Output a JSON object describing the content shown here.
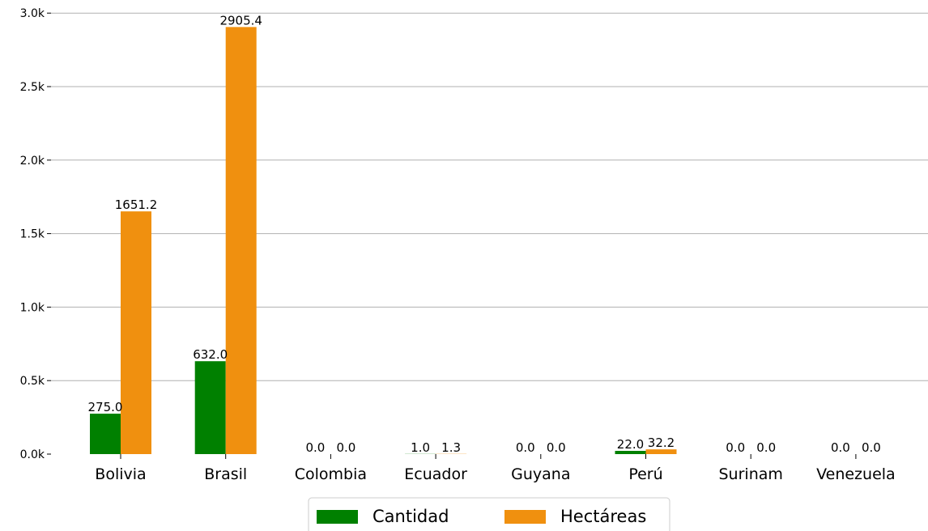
{
  "chart_data": {
    "type": "bar",
    "title": "",
    "xlabel": "",
    "ylabel": "",
    "categories": [
      "Bolivia",
      "Brasil",
      "Colombia",
      "Ecuador",
      "Guyana",
      "Perú",
      "Surinam",
      "Venezuela"
    ],
    "series": [
      {
        "name": "Cantidad",
        "color": "#008000",
        "values": [
          275.0,
          632.0,
          0.0,
          1.0,
          0.0,
          22.0,
          0.0,
          0.0
        ],
        "labels": [
          "275.0",
          "632.0",
          "0.0",
          "1.0",
          "0.0",
          "22.0",
          "0.0",
          "0.0"
        ]
      },
      {
        "name": "Hectáreas",
        "color": "#f0900f",
        "values": [
          1651.2,
          2905.4,
          0.0,
          1.3,
          0.0,
          32.2,
          0.0,
          0.0
        ],
        "labels": [
          "1651.2",
          "2905.4",
          "0.0",
          "1.3",
          "0.0",
          "32.2",
          "0.0",
          "0.0"
        ]
      }
    ],
    "yticks": [
      0,
      500,
      1000,
      1500,
      2000,
      2500,
      3000
    ],
    "ytick_labels": [
      "0.0k",
      "0.5k",
      "1.0k",
      "1.5k",
      "2.0k",
      "2.5k",
      "3.0k"
    ],
    "ylim": [
      0,
      3000
    ],
    "grid": "y",
    "legend_position": "bottom-center"
  }
}
